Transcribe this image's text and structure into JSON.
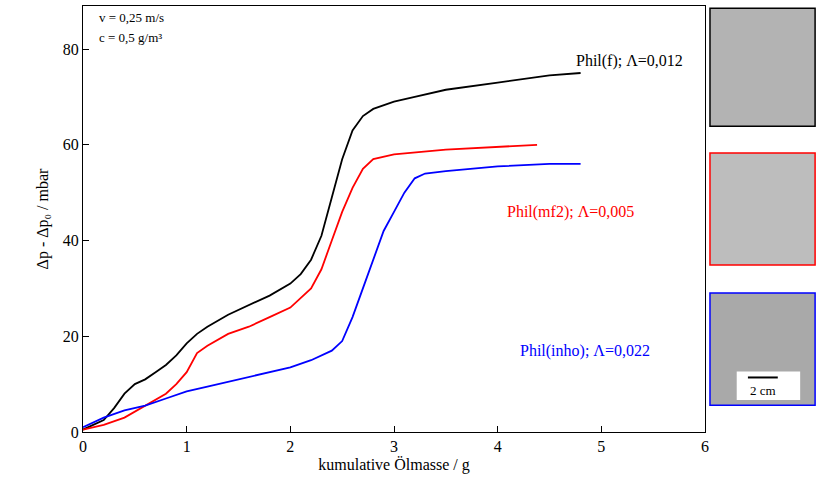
{
  "chart_data": {
    "type": "line",
    "x_label": "kumulative Ölmasse / g",
    "y_label": "Δp - Δp₀ / mbar",
    "annotations": [
      "v = 0,25 m/s",
      "c = 0,5 g/m³"
    ],
    "scale_bar": "2 cm",
    "xlim": [
      0,
      6
    ],
    "xticks": [
      0,
      1,
      2,
      3,
      4,
      5,
      6
    ],
    "ylim": [
      0,
      89
    ],
    "yticks": [
      0,
      20,
      40,
      60,
      80
    ],
    "grid": false,
    "series": [
      {
        "name": "Phil(f); Λ=0,012",
        "color": "#000000",
        "x": [
          0,
          0.2,
          0.3,
          0.4,
          0.5,
          0.6,
          0.7,
          0.8,
          0.9,
          1.0,
          1.1,
          1.2,
          1.4,
          1.6,
          1.8,
          2.0,
          2.1,
          2.2,
          2.3,
          2.4,
          2.5,
          2.6,
          2.7,
          2.8,
          3.0,
          3.2,
          3.5,
          4.0,
          4.5,
          4.8
        ],
        "values": [
          0.5,
          2.5,
          5,
          8,
          10,
          11,
          12.5,
          14,
          16,
          18.5,
          20.5,
          22,
          24.5,
          26.5,
          28.5,
          31,
          33,
          36,
          41,
          49,
          57,
          63,
          66,
          67.5,
          69,
          70,
          71.5,
          73,
          74.5,
          75
        ]
      },
      {
        "name": "Phil(mf2); Λ=0,005",
        "color": "#ff0000",
        "x": [
          0,
          0.2,
          0.4,
          0.6,
          0.8,
          0.9,
          1.0,
          1.1,
          1.2,
          1.4,
          1.6,
          1.8,
          2.0,
          2.2,
          2.3,
          2.4,
          2.5,
          2.6,
          2.7,
          2.8,
          3.0,
          3.5,
          4.0,
          4.38
        ],
        "values": [
          0.5,
          1.5,
          3,
          5.5,
          8,
          10,
          12.5,
          16.5,
          18,
          20.5,
          22,
          24,
          26,
          30,
          34,
          40,
          46,
          51,
          55,
          57,
          58,
          59,
          59.5,
          60
        ]
      },
      {
        "name": "Phil(inho); Λ=0,022",
        "color": "#0000ff",
        "x": [
          0,
          0.2,
          0.4,
          0.6,
          0.8,
          1.0,
          1.2,
          1.5,
          1.8,
          2.0,
          2.2,
          2.4,
          2.5,
          2.6,
          2.7,
          2.8,
          2.9,
          3.0,
          3.1,
          3.2,
          3.3,
          3.5,
          4.0,
          4.5,
          4.8
        ],
        "values": [
          1,
          3,
          4.5,
          5.5,
          7,
          8.5,
          9.5,
          11,
          12.5,
          13.5,
          15,
          17,
          19,
          24,
          30,
          36,
          42,
          46,
          50,
          53,
          54,
          54.5,
          55.5,
          56,
          56
        ]
      }
    ]
  }
}
